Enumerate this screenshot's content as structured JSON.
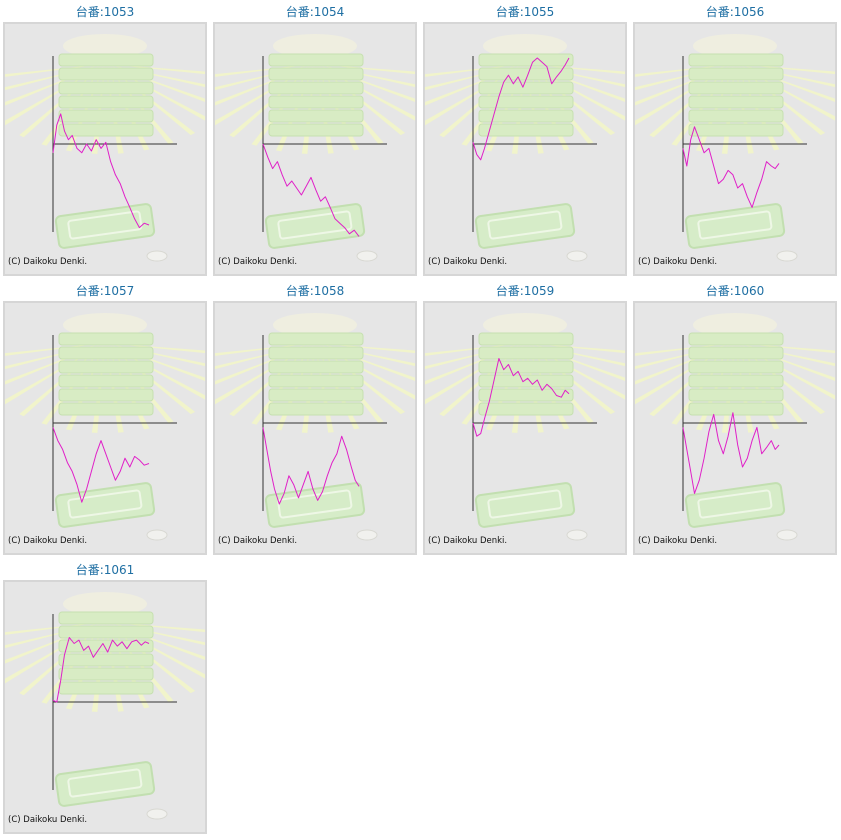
{
  "credit": "(C) Daikoku Denki.",
  "colors": {
    "line": "#e020c8",
    "axis": "#333333",
    "title": "#1f6fa3",
    "panel": "#e6e6e6"
  },
  "chart_data": [
    {
      "type": "line",
      "title": "台番:1053",
      "ylim": [
        -1,
        1
      ],
      "x": [
        0,
        0.04,
        0.08,
        0.12,
        0.16,
        0.2,
        0.25,
        0.3,
        0.35,
        0.4,
        0.45,
        0.5,
        0.55,
        0.6,
        0.65,
        0.7,
        0.75,
        0.8,
        0.85,
        0.9,
        0.95,
        1
      ],
      "y": [
        -0.1,
        0.22,
        0.35,
        0.15,
        0.05,
        0.1,
        -0.05,
        -0.1,
        0.0,
        -0.08,
        0.05,
        -0.05,
        0.02,
        -0.2,
        -0.35,
        -0.45,
        -0.6,
        -0.72,
        -0.85,
        -0.95,
        -0.9,
        -0.92
      ]
    },
    {
      "type": "line",
      "title": "台番:1054",
      "ylim": [
        -1,
        1
      ],
      "x": [
        0,
        0.05,
        0.1,
        0.15,
        0.2,
        0.25,
        0.3,
        0.35,
        0.4,
        0.45,
        0.5,
        0.55,
        0.6,
        0.65,
        0.7,
        0.75,
        0.8,
        0.85,
        0.9,
        0.95,
        1
      ],
      "y": [
        0.0,
        -0.15,
        -0.28,
        -0.2,
        -0.35,
        -0.48,
        -0.42,
        -0.5,
        -0.58,
        -0.48,
        -0.38,
        -0.52,
        -0.65,
        -0.6,
        -0.72,
        -0.85,
        -0.9,
        -0.95,
        -1.02,
        -0.98,
        -1.05
      ]
    },
    {
      "type": "line",
      "title": "台番:1055",
      "ylim": [
        -1,
        1
      ],
      "x": [
        0,
        0.04,
        0.08,
        0.12,
        0.17,
        0.22,
        0.27,
        0.32,
        0.37,
        0.42,
        0.47,
        0.52,
        0.57,
        0.62,
        0.67,
        0.72,
        0.77,
        0.82,
        0.87,
        0.92,
        0.96,
        1
      ],
      "y": [
        0.02,
        -0.12,
        -0.18,
        -0.05,
        0.15,
        0.35,
        0.55,
        0.72,
        0.8,
        0.7,
        0.78,
        0.66,
        0.8,
        0.95,
        1.0,
        0.95,
        0.9,
        0.7,
        0.78,
        0.85,
        0.92,
        1.0
      ]
    },
    {
      "type": "line",
      "title": "台番:1056",
      "ylim": [
        -1,
        1
      ],
      "x": [
        0,
        0.04,
        0.08,
        0.12,
        0.17,
        0.22,
        0.27,
        0.32,
        0.37,
        0.42,
        0.47,
        0.52,
        0.57,
        0.62,
        0.67,
        0.72,
        0.77,
        0.82,
        0.87,
        0.92,
        0.96,
        1
      ],
      "y": [
        -0.05,
        -0.25,
        0.05,
        0.2,
        0.05,
        -0.1,
        -0.05,
        -0.25,
        -0.45,
        -0.4,
        -0.3,
        -0.35,
        -0.5,
        -0.45,
        -0.6,
        -0.72,
        -0.55,
        -0.4,
        -0.2,
        -0.25,
        -0.28,
        -0.22
      ]
    },
    {
      "type": "line",
      "title": "台番:1057",
      "ylim": [
        -1,
        1
      ],
      "x": [
        0,
        0.05,
        0.1,
        0.15,
        0.2,
        0.25,
        0.3,
        0.35,
        0.4,
        0.45,
        0.5,
        0.55,
        0.6,
        0.65,
        0.7,
        0.75,
        0.8,
        0.85,
        0.9,
        0.95,
        1
      ],
      "y": [
        -0.05,
        -0.2,
        -0.3,
        -0.45,
        -0.55,
        -0.7,
        -0.9,
        -0.75,
        -0.55,
        -0.35,
        -0.2,
        -0.35,
        -0.5,
        -0.65,
        -0.55,
        -0.4,
        -0.5,
        -0.38,
        -0.42,
        -0.48,
        -0.46
      ]
    },
    {
      "type": "line",
      "title": "台番:1058",
      "ylim": [
        -1,
        1
      ],
      "x": [
        0,
        0.04,
        0.08,
        0.12,
        0.17,
        0.22,
        0.27,
        0.32,
        0.37,
        0.42,
        0.47,
        0.52,
        0.57,
        0.62,
        0.67,
        0.72,
        0.77,
        0.82,
        0.87,
        0.92,
        0.96,
        1
      ],
      "y": [
        -0.05,
        -0.3,
        -0.55,
        -0.75,
        -0.92,
        -0.8,
        -0.6,
        -0.7,
        -0.85,
        -0.7,
        -0.55,
        -0.75,
        -0.88,
        -0.78,
        -0.6,
        -0.45,
        -0.35,
        -0.15,
        -0.3,
        -0.5,
        -0.65,
        -0.72
      ]
    },
    {
      "type": "line",
      "title": "台番:1059",
      "ylim": [
        -1,
        1
      ],
      "x": [
        0,
        0.04,
        0.08,
        0.12,
        0.17,
        0.22,
        0.27,
        0.32,
        0.37,
        0.42,
        0.47,
        0.52,
        0.57,
        0.62,
        0.67,
        0.72,
        0.77,
        0.82,
        0.87,
        0.92,
        0.96,
        1
      ],
      "y": [
        0.0,
        -0.15,
        -0.12,
        0.05,
        0.25,
        0.5,
        0.75,
        0.62,
        0.68,
        0.55,
        0.6,
        0.48,
        0.52,
        0.45,
        0.5,
        0.38,
        0.45,
        0.4,
        0.32,
        0.3,
        0.38,
        0.34
      ]
    },
    {
      "type": "line",
      "title": "台番:1060",
      "ylim": [
        -1,
        1
      ],
      "x": [
        0,
        0.04,
        0.08,
        0.12,
        0.17,
        0.22,
        0.27,
        0.32,
        0.37,
        0.42,
        0.47,
        0.52,
        0.57,
        0.62,
        0.67,
        0.72,
        0.77,
        0.82,
        0.87,
        0.92,
        0.96,
        1
      ],
      "y": [
        -0.05,
        -0.3,
        -0.55,
        -0.8,
        -0.65,
        -0.4,
        -0.1,
        0.1,
        -0.2,
        -0.35,
        -0.15,
        0.12,
        -0.25,
        -0.5,
        -0.4,
        -0.2,
        -0.05,
        -0.35,
        -0.28,
        -0.2,
        -0.3,
        -0.25
      ]
    },
    {
      "type": "line",
      "title": "台番:1061",
      "ylim": [
        -1,
        1
      ],
      "x": [
        0,
        0.04,
        0.08,
        0.12,
        0.17,
        0.22,
        0.27,
        0.32,
        0.37,
        0.42,
        0.47,
        0.52,
        0.57,
        0.62,
        0.67,
        0.72,
        0.77,
        0.82,
        0.87,
        0.92,
        0.96,
        1
      ],
      "y": [
        0.02,
        0.0,
        0.25,
        0.55,
        0.75,
        0.68,
        0.72,
        0.6,
        0.65,
        0.52,
        0.6,
        0.68,
        0.58,
        0.72,
        0.65,
        0.7,
        0.62,
        0.7,
        0.72,
        0.66,
        0.7,
        0.68
      ]
    }
  ]
}
